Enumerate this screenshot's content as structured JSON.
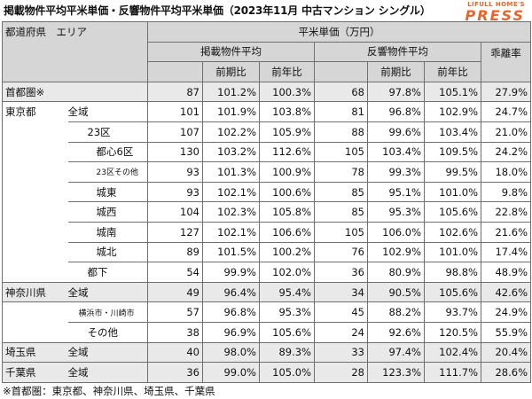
{
  "title": "掲載物件平均平米単価・反響物件平均平米単価（2023年11月 中古マンション シングル）",
  "logo": {
    "top": "LIFULL HOME'S",
    "bottom": "PRESS",
    "color": "#e8652a"
  },
  "header": {
    "area_label": "都道府県　エリア",
    "price_label": "平米単価（万円）",
    "listed_label": "掲載物件平均",
    "inquiry_label": "反響物件平均",
    "gap_label": "乖離率",
    "mom_label": "前期比",
    "yoy_label": "前年比"
  },
  "rows": [
    {
      "pref": "首都圏※",
      "area": "",
      "listed": "87",
      "listed_mom": "101.2%",
      "listed_yoy": "100.3%",
      "inq": "68",
      "inq_mom": "97.8%",
      "inq_yoy": "105.1%",
      "gap": "27.9%"
    },
    {
      "pref": "東京都",
      "area": "全域",
      "listed": "101",
      "listed_mom": "101.9%",
      "listed_yoy": "103.8%",
      "inq": "81",
      "inq_mom": "96.8%",
      "inq_yoy": "102.9%",
      "gap": "24.7%"
    },
    {
      "pref": "",
      "area": "23区",
      "listed": "107",
      "listed_mom": "102.2%",
      "listed_yoy": "105.9%",
      "inq": "88",
      "inq_mom": "99.6%",
      "inq_yoy": "103.4%",
      "gap": "21.0%"
    },
    {
      "pref": "",
      "area": "都心6区",
      "listed": "130",
      "listed_mom": "103.2%",
      "listed_yoy": "112.6%",
      "inq": "105",
      "inq_mom": "103.4%",
      "inq_yoy": "109.5%",
      "gap": "24.2%"
    },
    {
      "pref": "",
      "area": "23区その他",
      "listed": "93",
      "listed_mom": "101.3%",
      "listed_yoy": "100.9%",
      "inq": "78",
      "inq_mom": "99.3%",
      "inq_yoy": "99.5%",
      "gap": "18.0%"
    },
    {
      "pref": "",
      "area": "城東",
      "listed": "93",
      "listed_mom": "102.1%",
      "listed_yoy": "100.6%",
      "inq": "85",
      "inq_mom": "95.1%",
      "inq_yoy": "101.0%",
      "gap": "9.8%"
    },
    {
      "pref": "",
      "area": "城西",
      "listed": "104",
      "listed_mom": "102.3%",
      "listed_yoy": "105.8%",
      "inq": "85",
      "inq_mom": "95.3%",
      "inq_yoy": "105.6%",
      "gap": "22.8%"
    },
    {
      "pref": "",
      "area": "城南",
      "listed": "127",
      "listed_mom": "102.1%",
      "listed_yoy": "106.6%",
      "inq": "105",
      "inq_mom": "106.0%",
      "inq_yoy": "102.6%",
      "gap": "21.6%"
    },
    {
      "pref": "",
      "area": "城北",
      "listed": "89",
      "listed_mom": "101.5%",
      "listed_yoy": "100.2%",
      "inq": "76",
      "inq_mom": "102.9%",
      "inq_yoy": "101.0%",
      "gap": "17.4%"
    },
    {
      "pref": "",
      "area": "都下",
      "listed": "54",
      "listed_mom": "99.9%",
      "listed_yoy": "102.0%",
      "inq": "36",
      "inq_mom": "80.9%",
      "inq_yoy": "98.8%",
      "gap": "48.9%"
    },
    {
      "pref": "神奈川県",
      "area": "全域",
      "listed": "49",
      "listed_mom": "96.4%",
      "listed_yoy": "95.4%",
      "inq": "34",
      "inq_mom": "90.5%",
      "inq_yoy": "105.6%",
      "gap": "42.6%"
    },
    {
      "pref": "",
      "area": "横浜市・川崎市",
      "listed": "57",
      "listed_mom": "96.8%",
      "listed_yoy": "95.3%",
      "inq": "45",
      "inq_mom": "88.2%",
      "inq_yoy": "93.7%",
      "gap": "24.9%"
    },
    {
      "pref": "",
      "area": "その他",
      "listed": "38",
      "listed_mom": "96.9%",
      "listed_yoy": "105.6%",
      "inq": "24",
      "inq_mom": "92.6%",
      "inq_yoy": "120.5%",
      "gap": "55.9%"
    },
    {
      "pref": "埼玉県",
      "area": "全域",
      "listed": "40",
      "listed_mom": "98.0%",
      "listed_yoy": "89.3%",
      "inq": "33",
      "inq_mom": "97.4%",
      "inq_yoy": "102.4%",
      "gap": "20.4%"
    },
    {
      "pref": "千葉県",
      "area": "全域",
      "listed": "36",
      "listed_mom": "99.0%",
      "listed_yoy": "105.0%",
      "inq": "28",
      "inq_mom": "123.3%",
      "inq_yoy": "111.7%",
      "gap": "28.6%"
    }
  ],
  "note": "※首都圏：東京都、神奈川県、埼玉県、千葉県"
}
